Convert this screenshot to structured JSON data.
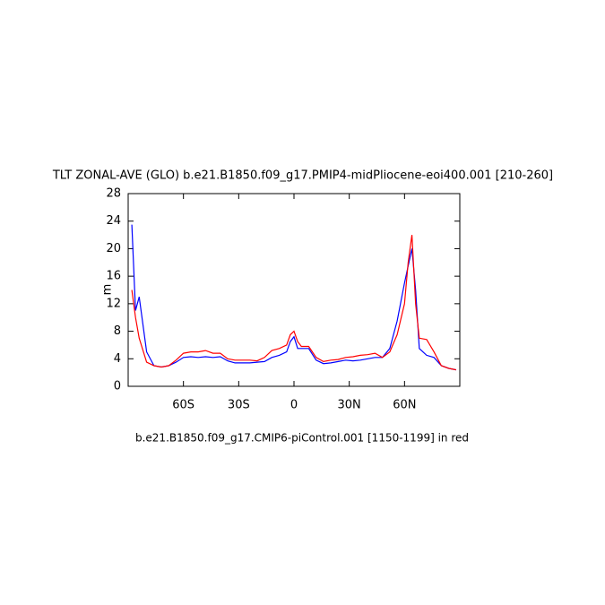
{
  "chart_data": {
    "type": "line",
    "title": "TLT ZONAL-AVE (GLO) b.e21.B1850.f09_g17.PMIP4-midPliocene-eoi400.001 [210-260]",
    "note": "b.e21.B1850.f09_g17.CMIP6-piControl.001 [1150-1199] in red",
    "y_label": "m",
    "x": [
      -88,
      -86,
      -84,
      -80,
      -76,
      -72,
      -68,
      -64,
      -60,
      -56,
      -52,
      -48,
      -44,
      -40,
      -36,
      -32,
      -28,
      -24,
      -20,
      -16,
      -12,
      -8,
      -4,
      -2,
      0,
      2,
      4,
      8,
      12,
      16,
      20,
      24,
      28,
      32,
      36,
      40,
      44,
      48,
      52,
      56,
      60,
      62,
      64,
      66,
      68,
      72,
      76,
      80,
      84,
      88
    ],
    "series": [
      {
        "color": "#0000ff",
        "values": [
          23.5,
          11,
          13,
          5,
          3,
          2.8,
          3,
          3.5,
          4.2,
          4.3,
          4.2,
          4.3,
          4.2,
          4.3,
          3.7,
          3.4,
          3.4,
          3.4,
          3.5,
          3.6,
          4.2,
          4.5,
          5.0,
          6.5,
          7.2,
          5.5,
          5.5,
          5.5,
          3.8,
          3.3,
          3.4,
          3.6,
          3.8,
          3.7,
          3.8,
          4.0,
          4.2,
          4.2,
          5.5,
          9.5,
          15,
          17.5,
          20,
          14,
          5.5,
          4.5,
          4.2,
          3,
          2.6,
          2.4
        ]
      },
      {
        "color": "#ff0000",
        "values": [
          14,
          10,
          7,
          3.5,
          3,
          2.8,
          3,
          3.8,
          4.8,
          5,
          5,
          5.2,
          4.8,
          4.8,
          4.0,
          3.8,
          3.8,
          3.8,
          3.7,
          4.2,
          5.2,
          5.5,
          6.0,
          7.5,
          8,
          6.5,
          5.8,
          5.8,
          4.2,
          3.6,
          3.8,
          3.9,
          4.2,
          4.3,
          4.5,
          4.6,
          4.8,
          4.2,
          5.0,
          7.5,
          12,
          18,
          22,
          12,
          7,
          6.8,
          5,
          3,
          2.6,
          2.4
        ]
      }
    ],
    "xlim": [
      -90,
      90
    ],
    "xticks": [
      {
        "value": -60,
        "label": "60S"
      },
      {
        "value": -30,
        "label": "30S"
      },
      0,
      {
        "value": 30,
        "label": "30N"
      },
      {
        "value": 60,
        "label": "60N"
      }
    ],
    "ylim": [
      0,
      28
    ],
    "yticks": [
      0,
      4,
      8,
      12,
      16,
      20,
      24,
      28
    ]
  }
}
